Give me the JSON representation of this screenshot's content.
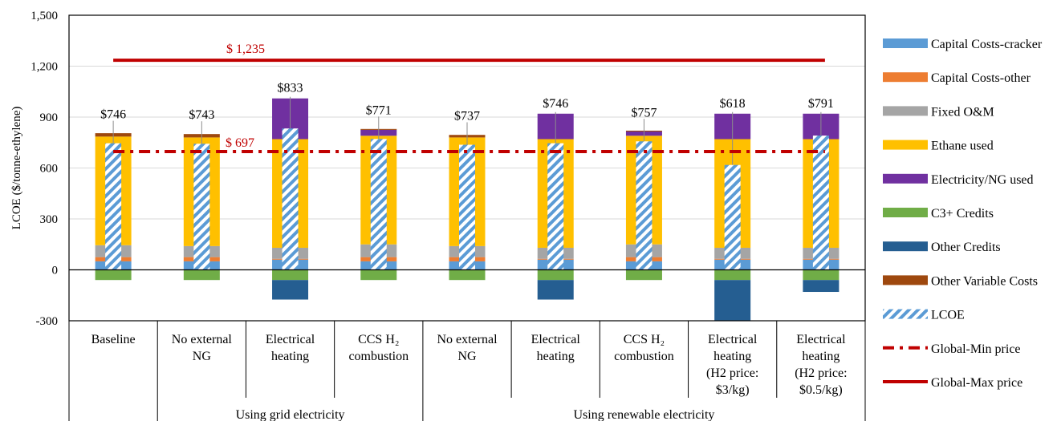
{
  "chart_data": {
    "type": "bar",
    "title": "",
    "ylabel": "LCOE ($/tonne-ethylene)",
    "ylim": [
      -300,
      1500
    ],
    "yticks": [
      -300,
      0,
      300,
      600,
      900,
      1200,
      1500
    ],
    "ytick_labels": [
      "-300",
      "0",
      "300",
      "600",
      "900",
      "1,200",
      "1,500"
    ],
    "categories": [
      [
        "Baseline"
      ],
      [
        "No external",
        "NG"
      ],
      [
        "Electrical",
        "heating"
      ],
      [
        "CCS H₂",
        "combustion"
      ],
      [
        "No external",
        "NG"
      ],
      [
        "Electrical",
        "heating"
      ],
      [
        "CCS H₂",
        "combustion"
      ],
      [
        "Electrical",
        "heating",
        "(H2 price:",
        "$3/kg)"
      ],
      [
        "Electrical",
        "heating",
        "(H2 price:",
        "$0.5/kg)"
      ]
    ],
    "groups": [
      {
        "label": "Using grid electricity",
        "start": 1,
        "end": 3
      },
      {
        "label": "Using renewable electricity",
        "start": 4,
        "end": 8
      }
    ],
    "series": [
      {
        "name": "Capital Costs-cracker",
        "color": "#5b9bd5",
        "values": [
          50,
          50,
          60,
          50,
          50,
          60,
          50,
          60,
          60
        ]
      },
      {
        "name": "Capital Costs-other",
        "color": "#ed7d31",
        "values": [
          25,
          25,
          5,
          25,
          25,
          5,
          25,
          5,
          5
        ]
      },
      {
        "name": "Fixed O&M",
        "color": "#a5a5a5",
        "values": [
          70,
          65,
          65,
          75,
          65,
          65,
          75,
          65,
          65
        ]
      },
      {
        "name": "Ethane used",
        "color": "#ffc000",
        "values": [
          640,
          640,
          640,
          640,
          640,
          640,
          640,
          640,
          640
        ]
      },
      {
        "name": "Electricity/NG used",
        "color": "#7030a0",
        "values": [
          0,
          0,
          240,
          35,
          0,
          150,
          25,
          150,
          150
        ]
      },
      {
        "name": "C3+ Credits",
        "color": "#70ad47",
        "values": [
          -60,
          -60,
          -60,
          -60,
          -60,
          -60,
          -60,
          -60,
          -60
        ]
      },
      {
        "name": "Other Credits",
        "color": "#255e91",
        "values": [
          0,
          0,
          -115,
          0,
          0,
          -115,
          0,
          -240,
          -70
        ]
      },
      {
        "name": "Other Variable Costs",
        "color": "#9e480e",
        "values": [
          20,
          20,
          0,
          5,
          15,
          0,
          5,
          0,
          0
        ]
      }
    ],
    "lcoe": {
      "name": "LCOE",
      "values": [
        746,
        743,
        833,
        771,
        737,
        746,
        757,
        618,
        791
      ],
      "labels": [
        "$746",
        "$743",
        "$833",
        "$771",
        "$737",
        "$746",
        "$757",
        "$618",
        "$791"
      ]
    },
    "global_min": {
      "name": "Global-Min price",
      "value": 697,
      "label": "$ 697",
      "color": "#c00000"
    },
    "global_max": {
      "name": "Global-Max price",
      "value": 1235,
      "label": "$ 1,235",
      "color": "#c00000"
    },
    "legend_position": "right"
  }
}
